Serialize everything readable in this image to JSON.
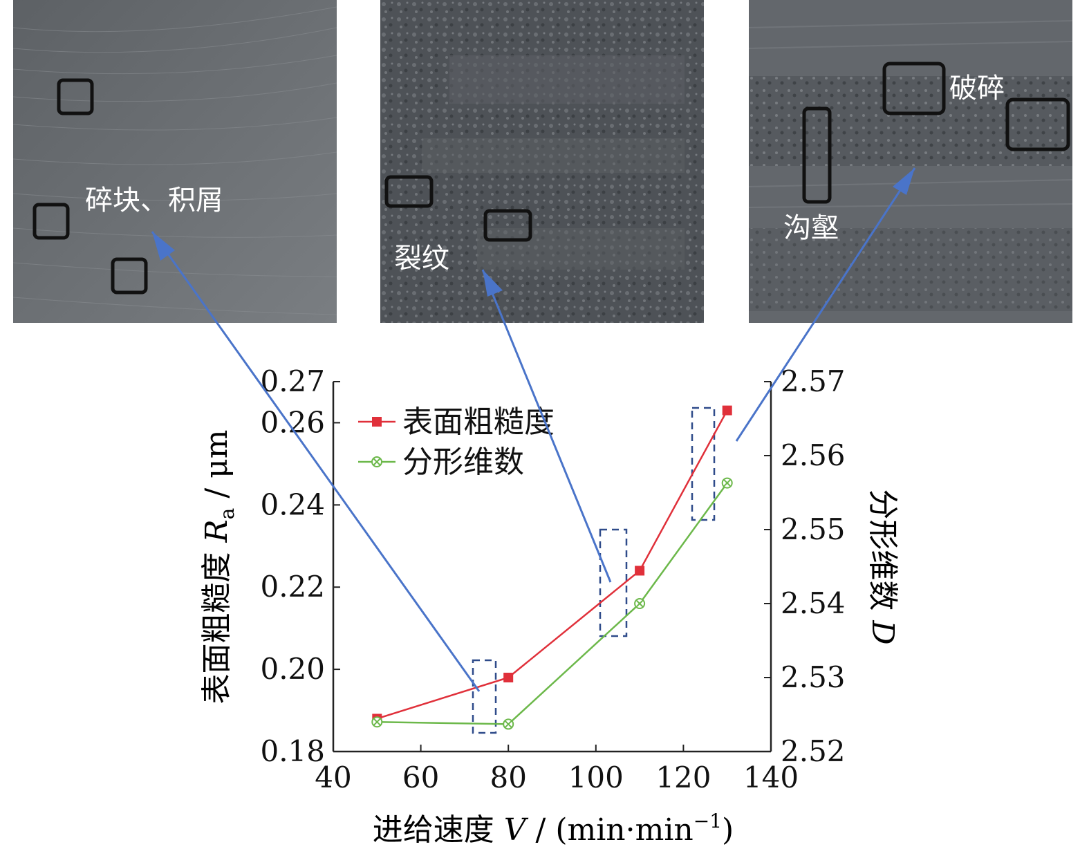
{
  "images": [
    {
      "annotation": "碎块、积屑"
    },
    {
      "annotation": "裂纹"
    },
    {
      "annotation_1": "破碎",
      "annotation_2": "沟壑"
    }
  ],
  "chart_data": {
    "type": "line",
    "x": [
      50,
      80,
      110,
      130
    ],
    "xlim": [
      40,
      140
    ],
    "xticks": [
      "40",
      "60",
      "80",
      "100",
      "120",
      "140"
    ],
    "xlabel_prefix": "进给速度 ",
    "xlabel_var": "V",
    "xlabel_unit": " / (min·min",
    "xlabel_sup": "−1",
    "xlabel_close": ")",
    "ylabel_left_prefix": "表面粗糙度 ",
    "ylabel_left_var": "R",
    "ylabel_left_sub": "a",
    "ylabel_left_unit": " / μm",
    "ylabel_right_prefix": "分形维数 ",
    "ylabel_right_var": "D",
    "ylim_left": [
      0.18,
      0.27
    ],
    "ylim_right": [
      2.52,
      2.57
    ],
    "yticks_left": [
      "0.18",
      "0.20",
      "0.22",
      "0.24",
      "0.26",
      "0.27"
    ],
    "yticks_right": [
      "2.52",
      "2.53",
      "2.54",
      "2.55",
      "2.56",
      "2.57"
    ],
    "series": [
      {
        "name": "表面粗糙度",
        "axis": "left",
        "color": "#e0303a",
        "marker": "square",
        "y": [
          0.188,
          0.198,
          0.224,
          0.263
        ]
      },
      {
        "name": "分形维数",
        "axis": "right",
        "color": "#6cb84a",
        "marker": "circle-x",
        "y": [
          2.524,
          2.5237,
          2.54,
          2.5563
        ]
      }
    ],
    "grid": false,
    "legend_position": "top-left"
  }
}
